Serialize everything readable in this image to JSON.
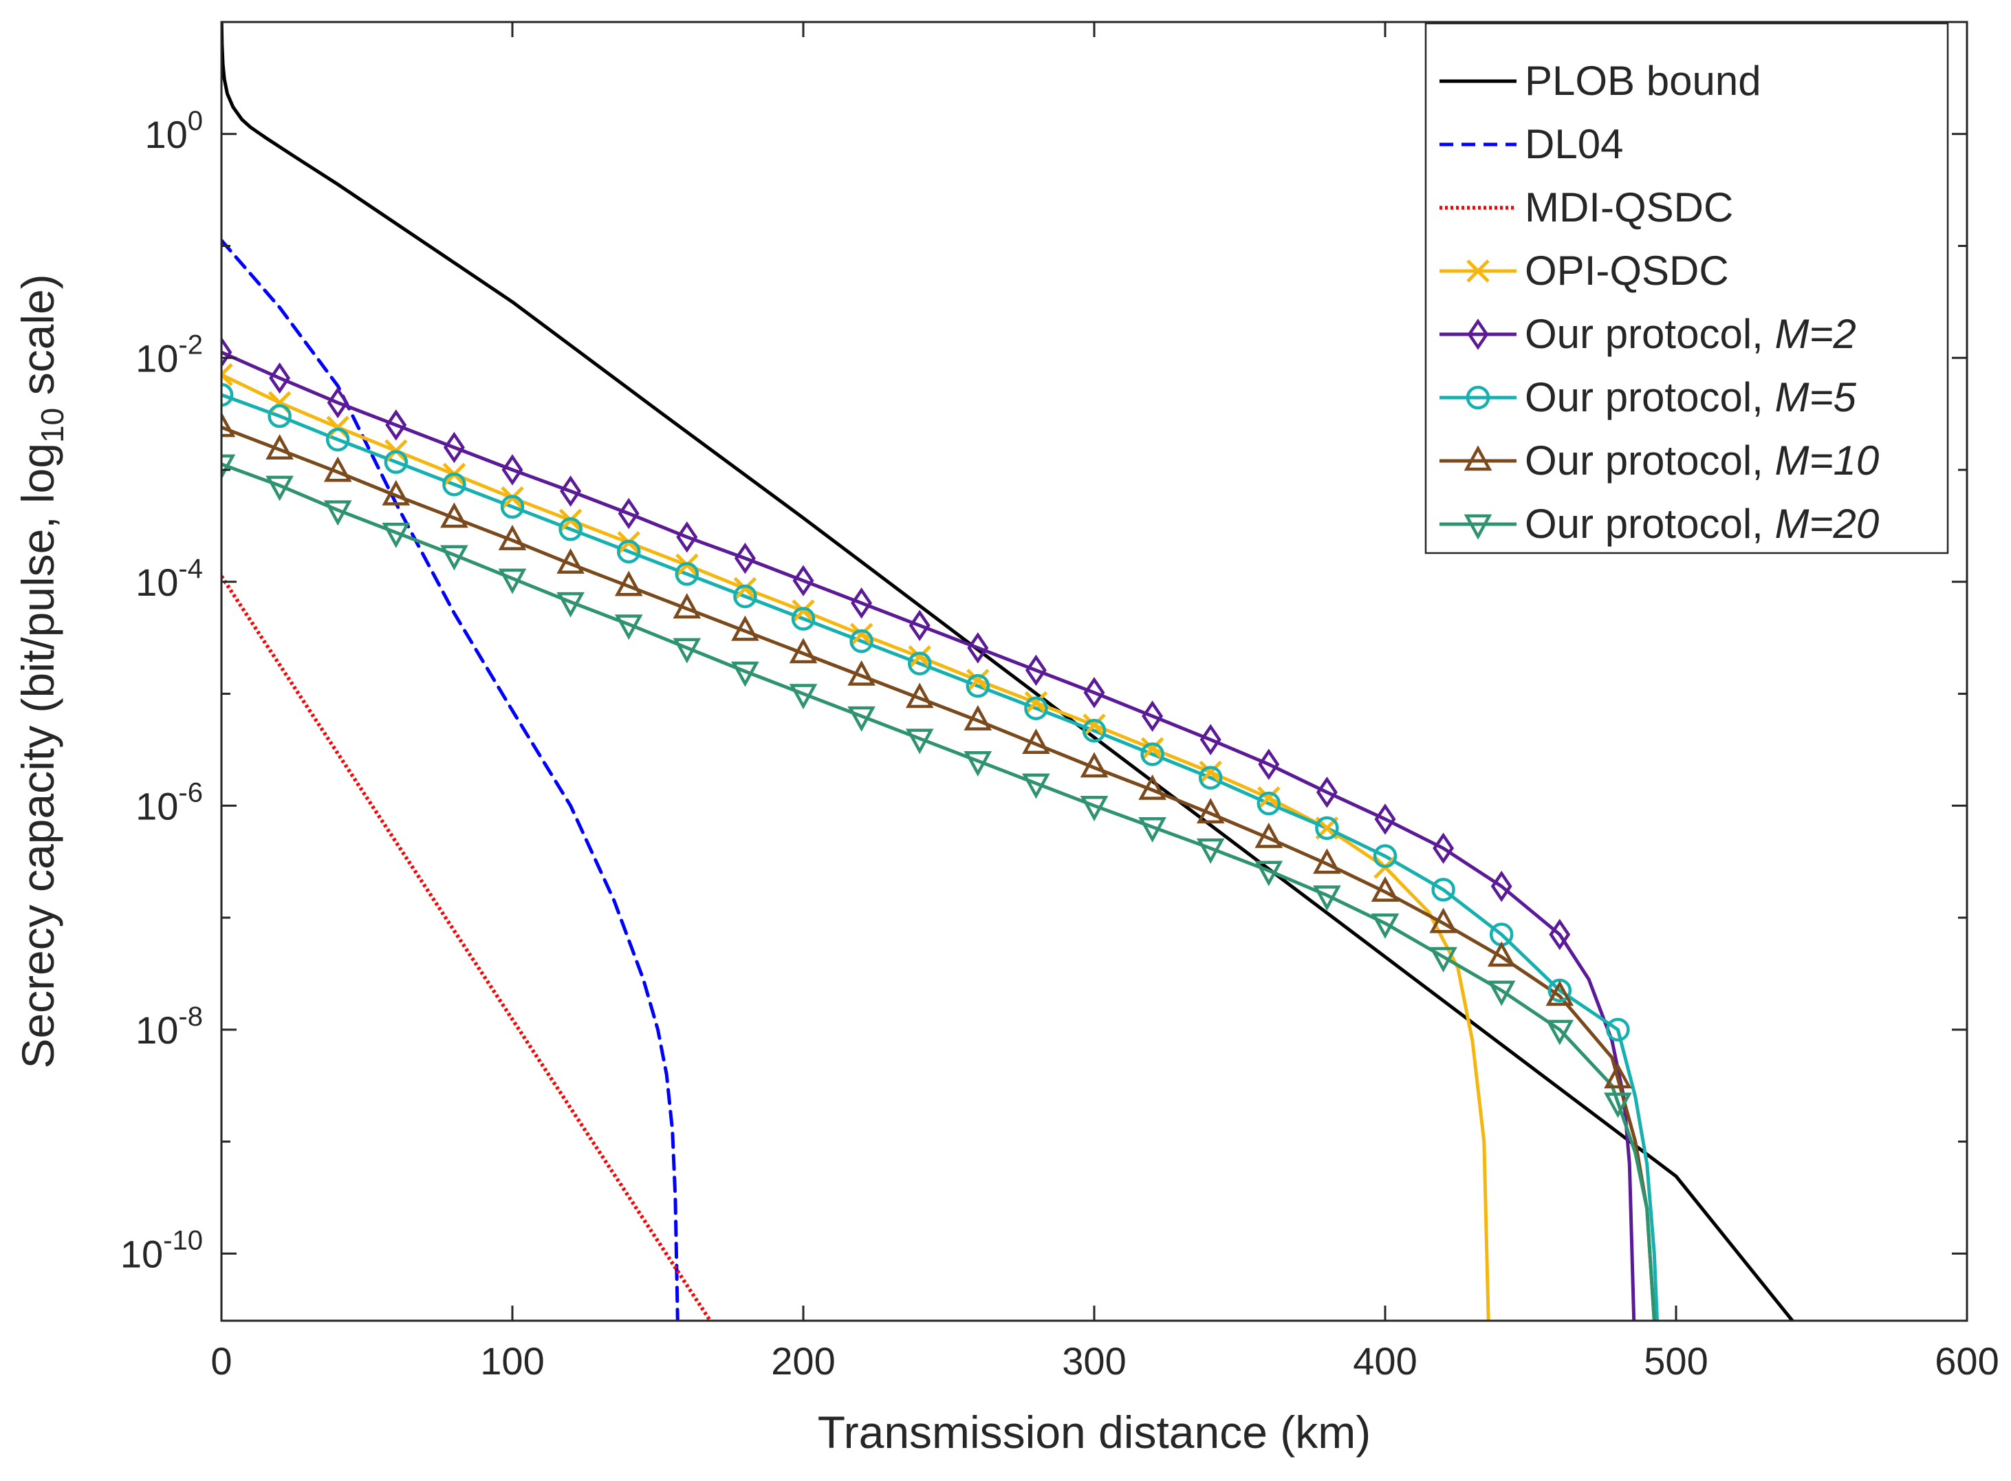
{
  "chart_data": {
    "type": "line",
    "title": "",
    "xlabel": "Transmission distance (km)",
    "ylabel": {
      "prefix": "Secrecy capacity (bit/pulse, log",
      "sub": "10",
      "suffix": " scale)"
    },
    "xlim": [
      0,
      600
    ],
    "ylim_log10": [
      -10.6,
      1.0
    ],
    "y_scale": "log",
    "grid": false,
    "legend_position": "top-right",
    "x_ticks": [
      0,
      100,
      200,
      300,
      400,
      500,
      600
    ],
    "y_ticks": [
      {
        "base": "10",
        "exp": "0",
        "log": 0
      },
      {
        "base": "10",
        "exp": "-2",
        "log": -2
      },
      {
        "base": "10",
        "exp": "-4",
        "log": -4
      },
      {
        "base": "10",
        "exp": "-6",
        "log": -6
      },
      {
        "base": "10",
        "exp": "-8",
        "log": -8
      },
      {
        "base": "10",
        "exp": "-10",
        "log": -10
      }
    ],
    "series": [
      {
        "name": "PLOB bound",
        "label": "PLOB bound",
        "italic": "",
        "color": "#000000",
        "style": "solid",
        "marker": "none",
        "points": [
          [
            0.05,
            1.0
          ],
          [
            0.2,
            0.8
          ],
          [
            0.5,
            0.62
          ],
          [
            1,
            0.49
          ],
          [
            2,
            0.36
          ],
          [
            4,
            0.24
          ],
          [
            7,
            0.13
          ],
          [
            10,
            0.06
          ],
          [
            15,
            -0.03
          ],
          [
            25,
            -0.2
          ],
          [
            40,
            -0.45
          ],
          [
            60,
            -0.8
          ],
          [
            80,
            -1.15
          ],
          [
            100,
            -1.5
          ],
          [
            150,
            -2.47
          ],
          [
            200,
            -3.43
          ],
          [
            250,
            -4.41
          ],
          [
            300,
            -5.39
          ],
          [
            350,
            -6.37
          ],
          [
            400,
            -7.35
          ],
          [
            450,
            -8.33
          ],
          [
            500,
            -9.31
          ],
          [
            540,
            -10.6
          ]
        ]
      },
      {
        "name": "DL04",
        "label": "DL04",
        "italic": "",
        "color": "#0000ff",
        "style": "dashed",
        "marker": "none",
        "points": [
          [
            0,
            -0.95
          ],
          [
            20,
            -1.55
          ],
          [
            40,
            -2.25
          ],
          [
            60,
            -3.3
          ],
          [
            80,
            -4.28
          ],
          [
            100,
            -5.15
          ],
          [
            120,
            -6.0
          ],
          [
            135,
            -6.85
          ],
          [
            145,
            -7.55
          ],
          [
            150,
            -8.0
          ],
          [
            153,
            -8.4
          ],
          [
            155,
            -8.9
          ],
          [
            156,
            -9.5
          ],
          [
            156.8,
            -10.6
          ]
        ]
      },
      {
        "name": "MDI-QSDC",
        "label": "MDI-QSDC",
        "italic": "",
        "color": "#ff0000",
        "style": "dotted",
        "marker": "none",
        "points": [
          [
            0,
            -3.95
          ],
          [
            168,
            -10.6
          ]
        ]
      },
      {
        "name": "OPI-QSDC",
        "label": "OPI-QSDC",
        "italic": "",
        "color": "#f5b70f",
        "style": "solid",
        "marker": "x",
        "points": [
          [
            0,
            -2.15
          ],
          [
            20,
            -2.4
          ],
          [
            40,
            -2.62
          ],
          [
            60,
            -2.83
          ],
          [
            80,
            -3.04
          ],
          [
            100,
            -3.25
          ],
          [
            120,
            -3.45
          ],
          [
            140,
            -3.65
          ],
          [
            160,
            -3.85
          ],
          [
            180,
            -4.06
          ],
          [
            200,
            -4.26
          ],
          [
            220,
            -4.47
          ],
          [
            240,
            -4.67
          ],
          [
            260,
            -4.88
          ],
          [
            280,
            -5.08
          ],
          [
            300,
            -5.28
          ],
          [
            320,
            -5.49
          ],
          [
            340,
            -5.7
          ],
          [
            360,
            -5.93
          ],
          [
            380,
            -6.2
          ],
          [
            400,
            -6.55
          ],
          [
            415,
            -6.95
          ],
          [
            425,
            -7.45
          ],
          [
            430,
            -8.1
          ],
          [
            434,
            -9.0
          ],
          [
            435.5,
            -10.6
          ]
        ],
        "marker_x": [
          0,
          20,
          40,
          60,
          80,
          100,
          120,
          140,
          160,
          180,
          200,
          220,
          240,
          260,
          280,
          300,
          320,
          340,
          360,
          380,
          400
        ]
      },
      {
        "name": "Our protocol, M=2",
        "label": "Our protocol, ",
        "italic": "M=2",
        "color": "#5b1a96",
        "style": "solid",
        "marker": "diamond",
        "points": [
          [
            0,
            -1.95
          ],
          [
            20,
            -2.18
          ],
          [
            40,
            -2.4
          ],
          [
            60,
            -2.6
          ],
          [
            80,
            -2.8
          ],
          [
            100,
            -3.0
          ],
          [
            120,
            -3.19
          ],
          [
            140,
            -3.39
          ],
          [
            160,
            -3.6
          ],
          [
            180,
            -3.79
          ],
          [
            200,
            -3.99
          ],
          [
            220,
            -4.19
          ],
          [
            240,
            -4.39
          ],
          [
            260,
            -4.59
          ],
          [
            280,
            -4.79
          ],
          [
            300,
            -4.99
          ],
          [
            320,
            -5.2
          ],
          [
            340,
            -5.41
          ],
          [
            360,
            -5.63
          ],
          [
            380,
            -5.88
          ],
          [
            400,
            -6.12
          ],
          [
            420,
            -6.38
          ],
          [
            440,
            -6.72
          ],
          [
            460,
            -7.15
          ],
          [
            470,
            -7.55
          ],
          [
            478,
            -8.1
          ],
          [
            482,
            -8.6
          ],
          [
            484,
            -9.2
          ],
          [
            485.5,
            -10.6
          ]
        ],
        "marker_x": [
          0,
          20,
          40,
          60,
          80,
          100,
          120,
          140,
          160,
          180,
          200,
          220,
          240,
          260,
          280,
          300,
          320,
          340,
          360,
          380,
          400,
          420,
          440,
          460
        ]
      },
      {
        "name": "Our protocol, M=5",
        "label": "Our protocol, ",
        "italic": "M=5",
        "color": "#16b0b0",
        "style": "solid",
        "marker": "circle",
        "points": [
          [
            0,
            -2.33
          ],
          [
            20,
            -2.52
          ],
          [
            40,
            -2.73
          ],
          [
            60,
            -2.93
          ],
          [
            80,
            -3.13
          ],
          [
            100,
            -3.33
          ],
          [
            120,
            -3.53
          ],
          [
            140,
            -3.73
          ],
          [
            160,
            -3.93
          ],
          [
            180,
            -4.13
          ],
          [
            200,
            -4.33
          ],
          [
            220,
            -4.53
          ],
          [
            240,
            -4.73
          ],
          [
            260,
            -4.93
          ],
          [
            280,
            -5.13
          ],
          [
            300,
            -5.33
          ],
          [
            320,
            -5.54
          ],
          [
            340,
            -5.75
          ],
          [
            360,
            -5.98
          ],
          [
            380,
            -6.2
          ],
          [
            400,
            -6.45
          ],
          [
            420,
            -6.75
          ],
          [
            440,
            -7.15
          ],
          [
            460,
            -7.65
          ],
          [
            480,
            -8.0
          ],
          [
            486,
            -8.6
          ],
          [
            490,
            -9.2
          ],
          [
            492.5,
            -10.0
          ],
          [
            493.5,
            -10.6
          ]
        ],
        "marker_x": [
          0,
          20,
          40,
          60,
          80,
          100,
          120,
          140,
          160,
          180,
          200,
          220,
          240,
          260,
          280,
          300,
          320,
          340,
          360,
          380,
          400,
          420,
          440,
          460,
          480
        ]
      },
      {
        "name": "Our protocol, M=10",
        "label": "Our protocol, ",
        "italic": "M=10",
        "color": "#7a4a1c",
        "style": "solid",
        "marker": "triangle-up",
        "points": [
          [
            0,
            -2.62
          ],
          [
            20,
            -2.82
          ],
          [
            40,
            -3.02
          ],
          [
            60,
            -3.23
          ],
          [
            80,
            -3.43
          ],
          [
            100,
            -3.63
          ],
          [
            120,
            -3.84
          ],
          [
            140,
            -4.04
          ],
          [
            160,
            -4.24
          ],
          [
            180,
            -4.44
          ],
          [
            200,
            -4.64
          ],
          [
            220,
            -4.84
          ],
          [
            240,
            -5.04
          ],
          [
            260,
            -5.24
          ],
          [
            280,
            -5.45
          ],
          [
            300,
            -5.66
          ],
          [
            320,
            -5.86
          ],
          [
            340,
            -6.07
          ],
          [
            360,
            -6.29
          ],
          [
            380,
            -6.52
          ],
          [
            400,
            -6.77
          ],
          [
            420,
            -7.05
          ],
          [
            440,
            -7.35
          ],
          [
            460,
            -7.7
          ],
          [
            478,
            -8.25
          ],
          [
            486,
            -9.0
          ],
          [
            490,
            -9.6
          ],
          [
            492.5,
            -10.6
          ]
        ],
        "marker_x": [
          0,
          20,
          40,
          60,
          80,
          100,
          120,
          140,
          160,
          180,
          200,
          220,
          240,
          260,
          280,
          300,
          320,
          340,
          360,
          380,
          400,
          420,
          440,
          460,
          480
        ]
      },
      {
        "name": "Our protocol, M=20",
        "label": "Our protocol, ",
        "italic": "M=20",
        "color": "#2f9370",
        "style": "solid",
        "marker": "triangle-down",
        "points": [
          [
            0,
            -2.95
          ],
          [
            20,
            -3.14
          ],
          [
            40,
            -3.36
          ],
          [
            60,
            -3.56
          ],
          [
            80,
            -3.76
          ],
          [
            100,
            -3.97
          ],
          [
            120,
            -4.18
          ],
          [
            140,
            -4.38
          ],
          [
            160,
            -4.59
          ],
          [
            180,
            -4.8
          ],
          [
            200,
            -5.0
          ],
          [
            220,
            -5.2
          ],
          [
            240,
            -5.4
          ],
          [
            260,
            -5.6
          ],
          [
            280,
            -5.8
          ],
          [
            300,
            -6.0
          ],
          [
            320,
            -6.19
          ],
          [
            340,
            -6.38
          ],
          [
            360,
            -6.58
          ],
          [
            380,
            -6.8
          ],
          [
            400,
            -7.05
          ],
          [
            420,
            -7.35
          ],
          [
            440,
            -7.65
          ],
          [
            460,
            -8.0
          ],
          [
            478,
            -8.5
          ],
          [
            486,
            -9.1
          ],
          [
            490,
            -9.6
          ],
          [
            492.5,
            -10.6
          ]
        ],
        "marker_x": [
          0,
          20,
          40,
          60,
          80,
          100,
          120,
          140,
          160,
          180,
          200,
          220,
          240,
          260,
          280,
          300,
          320,
          340,
          360,
          380,
          400,
          420,
          440,
          460,
          480
        ]
      }
    ]
  }
}
